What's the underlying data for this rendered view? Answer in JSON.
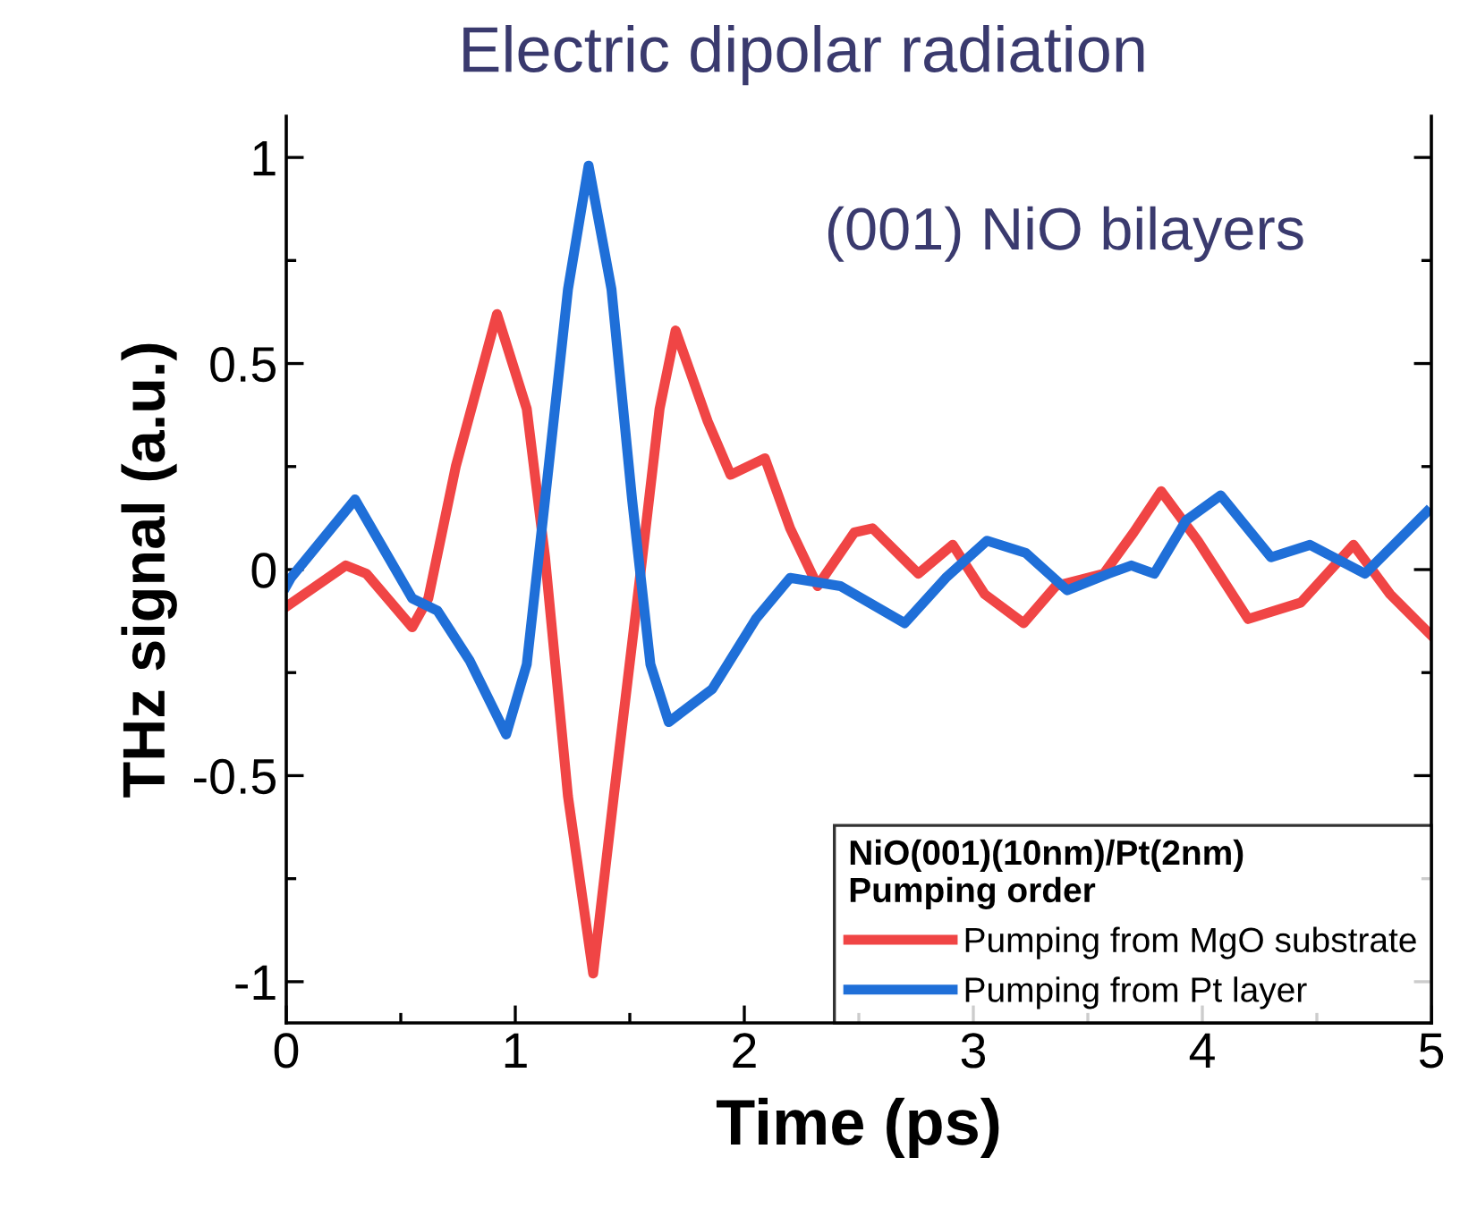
{
  "chart_data": {
    "type": "line",
    "title": "Electric dipolar radiation",
    "xlabel": "Time (ps)",
    "ylabel": "THz signal (a.u.)",
    "annotations": [
      "(001) NiO bilayers"
    ],
    "legend_title": "NiO(001)(10nm)/Pt(2nm)\nPumping order",
    "xlim": [
      0,
      5
    ],
    "xticks": [
      0,
      1,
      2,
      3,
      4,
      5
    ],
    "ylim": [
      -1.1,
      1.1
    ],
    "yticks": [
      {
        "value": -1,
        "label": "-1"
      },
      {
        "value": -0.5,
        "label": "-0.5"
      },
      0,
      0.5,
      1
    ],
    "grid": false,
    "legend": "bottom right",
    "line_style": "solid",
    "marker": "none",
    "series": [
      {
        "name": "Pumping from MgO substrate",
        "color": "#f04545",
        "x": [
          0,
          0.26,
          0.35,
          0.55,
          0.62,
          0.74,
          0.92,
          1.05,
          1.13,
          1.23,
          1.34,
          1.43,
          1.54,
          1.63,
          1.7,
          1.84,
          1.94,
          2.09,
          2.2,
          2.32,
          2.48,
          2.56,
          2.76,
          2.91,
          3.05,
          3.22,
          3.36,
          3.57,
          3.7,
          3.82,
          3.98,
          4.2,
          4.43,
          4.66,
          4.82,
          5.0
        ],
        "values": [
          -0.09,
          0.01,
          -0.01,
          -0.14,
          -0.07,
          0.25,
          0.62,
          0.39,
          0.03,
          -0.55,
          -0.98,
          -0.55,
          -0.04,
          0.39,
          0.58,
          0.36,
          0.23,
          0.27,
          0.1,
          -0.04,
          0.09,
          0.1,
          -0.01,
          0.06,
          -0.06,
          -0.13,
          -0.04,
          -0.01,
          0.09,
          0.19,
          0.07,
          -0.12,
          -0.08,
          0.06,
          -0.06,
          -0.16
        ]
      },
      {
        "name": "Pumping from Pt layer",
        "color": "#1f6fd8",
        "x": [
          0,
          0.02,
          0.3,
          0.55,
          0.66,
          0.8,
          0.96,
          1.05,
          1.13,
          1.23,
          1.32,
          1.42,
          1.51,
          1.59,
          1.67,
          1.86,
          2.05,
          2.2,
          2.42,
          2.7,
          2.88,
          3.06,
          3.23,
          3.41,
          3.59,
          3.69,
          3.79,
          3.93,
          4.08,
          4.3,
          4.47,
          4.71,
          4.98
        ],
        "values": [
          -0.04,
          -0.02,
          0.17,
          -0.07,
          -0.1,
          -0.22,
          -0.4,
          -0.23,
          0.17,
          0.68,
          0.98,
          0.68,
          0.17,
          -0.23,
          -0.37,
          -0.29,
          -0.12,
          -0.02,
          -0.04,
          -0.13,
          -0.02,
          0.07,
          0.04,
          -0.05,
          -0.01,
          0.01,
          -0.01,
          0.12,
          0.18,
          0.03,
          0.06,
          -0.01,
          0.14
        ]
      }
    ]
  }
}
